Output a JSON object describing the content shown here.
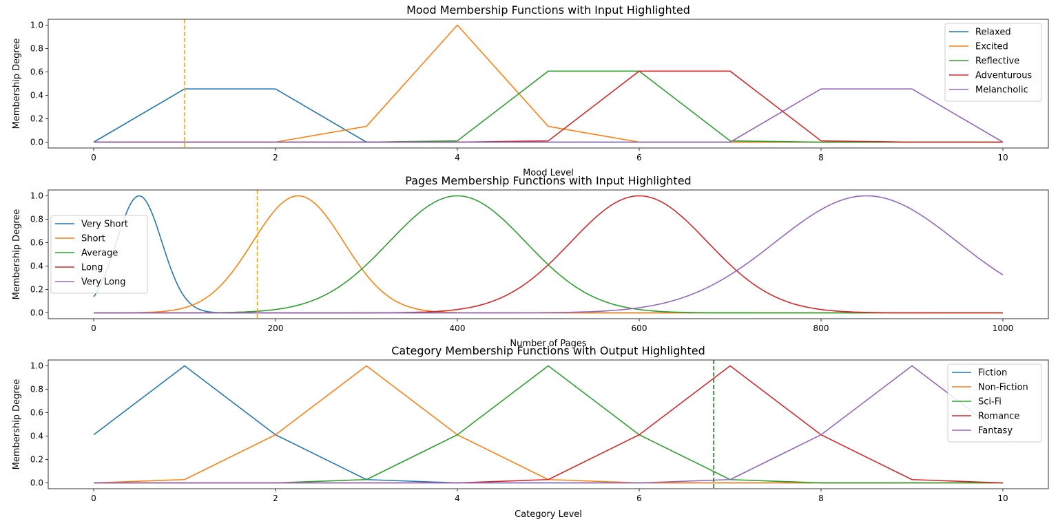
{
  "chart_data": [
    {
      "type": "line",
      "title": "Mood Membership Functions with Input Highlighted",
      "xlabel": "Mood Level",
      "ylabel": "Membership Degree",
      "xlim": [
        0,
        10
      ],
      "ylim": [
        0,
        1
      ],
      "xticks": [
        0,
        2,
        4,
        6,
        8,
        10
      ],
      "yticks": [
        "0.0",
        "0.2",
        "0.4",
        "0.6",
        "0.8",
        "1.0"
      ],
      "highlight_x": 1,
      "highlight_color": "#ffa500",
      "legend_position": "upper-right",
      "series": [
        {
          "name": "Relaxed",
          "color": "#1f77b4",
          "points": [
            [
              0,
              0
            ],
            [
              1,
              0.455
            ],
            [
              2,
              0.455
            ],
            [
              3,
              0
            ],
            [
              10,
              0
            ]
          ]
        },
        {
          "name": "Excited",
          "color": "#ff7f0e",
          "points": [
            [
              0,
              0
            ],
            [
              2,
              0
            ],
            [
              3,
              0.135
            ],
            [
              4,
              1
            ],
            [
              5,
              0.135
            ],
            [
              6,
              0
            ],
            [
              10,
              0
            ]
          ]
        },
        {
          "name": "Reflective",
          "color": "#2ca02c",
          "points": [
            [
              0,
              0
            ],
            [
              3,
              0
            ],
            [
              4,
              0.011
            ],
            [
              5,
              0.607
            ],
            [
              6,
              0.607
            ],
            [
              7,
              0.011
            ],
            [
              8,
              0
            ],
            [
              10,
              0
            ]
          ]
        },
        {
          "name": "Adventurous",
          "color": "#d62728",
          "points": [
            [
              0,
              0
            ],
            [
              4,
              0
            ],
            [
              5,
              0.011
            ],
            [
              6,
              0.607
            ],
            [
              7,
              0.607
            ],
            [
              8,
              0.011
            ],
            [
              9,
              0
            ],
            [
              10,
              0
            ]
          ]
        },
        {
          "name": "Melancholic",
          "color": "#9467bd",
          "points": [
            [
              0,
              0
            ],
            [
              7,
              0
            ],
            [
              8,
              0.455
            ],
            [
              9,
              0.455
            ],
            [
              10,
              0
            ]
          ]
        }
      ]
    },
    {
      "type": "line",
      "title": "Pages Membership Functions with Input Highlighted",
      "xlabel": "Number of Pages",
      "ylabel": "Membership Degree",
      "xlim": [
        0,
        1000
      ],
      "ylim": [
        0,
        1
      ],
      "xticks": [
        0,
        200,
        400,
        600,
        800,
        1000
      ],
      "yticks": [
        "0.0",
        "0.2",
        "0.4",
        "0.6",
        "0.8",
        "1.0"
      ],
      "highlight_x": 180,
      "highlight_color": "#ffa500",
      "legend_position": "center-left",
      "series": [
        {
          "name": "Very Short",
          "color": "#1f77b4",
          "gaussian": {
            "mean": 50,
            "sigma": 25
          }
        },
        {
          "name": "Short",
          "color": "#ff7f0e",
          "gaussian": {
            "mean": 225,
            "sigma": 50
          }
        },
        {
          "name": "Average",
          "color": "#2ca02c",
          "gaussian": {
            "mean": 400,
            "sigma": 75
          }
        },
        {
          "name": "Long",
          "color": "#d62728",
          "gaussian": {
            "mean": 600,
            "sigma": 75
          }
        },
        {
          "name": "Very Long",
          "color": "#9467bd",
          "gaussian": {
            "mean": 850,
            "sigma": 100
          }
        }
      ]
    },
    {
      "type": "line",
      "title": "Category Membership Functions with Output Highlighted",
      "xlabel": "Category Level",
      "ylabel": "Membership Degree",
      "xlim": [
        0,
        10
      ],
      "ylim": [
        0,
        1
      ],
      "xticks": [
        0,
        2,
        4,
        6,
        8,
        10
      ],
      "yticks": [
        "0.0",
        "0.2",
        "0.4",
        "0.6",
        "0.8",
        "1.0"
      ],
      "highlight_x": 6.82,
      "highlight_color": "#008000",
      "legend_position": "upper-right",
      "series": [
        {
          "name": "Fiction",
          "color": "#1f77b4",
          "points": [
            [
              0,
              0.411
            ],
            [
              1,
              1
            ],
            [
              2,
              0.411
            ],
            [
              3,
              0.028
            ],
            [
              4,
              0
            ],
            [
              10,
              0
            ]
          ]
        },
        {
          "name": "Non-Fiction",
          "color": "#ff7f0e",
          "points": [
            [
              0,
              0
            ],
            [
              1,
              0.028
            ],
            [
              2,
              0.411
            ],
            [
              3,
              1
            ],
            [
              4,
              0.411
            ],
            [
              5,
              0.028
            ],
            [
              6,
              0
            ],
            [
              10,
              0
            ]
          ]
        },
        {
          "name": "Sci-Fi",
          "color": "#2ca02c",
          "points": [
            [
              0,
              0
            ],
            [
              2,
              0
            ],
            [
              3,
              0.028
            ],
            [
              4,
              0.411
            ],
            [
              5,
              1
            ],
            [
              6,
              0.411
            ],
            [
              7,
              0.028
            ],
            [
              8,
              0
            ],
            [
              10,
              0
            ]
          ]
        },
        {
          "name": "Romance",
          "color": "#d62728",
          "points": [
            [
              0,
              0
            ],
            [
              4,
              0
            ],
            [
              5,
              0.028
            ],
            [
              6,
              0.411
            ],
            [
              7,
              1
            ],
            [
              8,
              0.411
            ],
            [
              9,
              0.028
            ],
            [
              10,
              0
            ]
          ]
        },
        {
          "name": "Fantasy",
          "color": "#9467bd",
          "points": [
            [
              0,
              0
            ],
            [
              6,
              0
            ],
            [
              7,
              0.028
            ],
            [
              8,
              0.411
            ],
            [
              9,
              1
            ],
            [
              10,
              0.411
            ]
          ]
        }
      ]
    }
  ]
}
